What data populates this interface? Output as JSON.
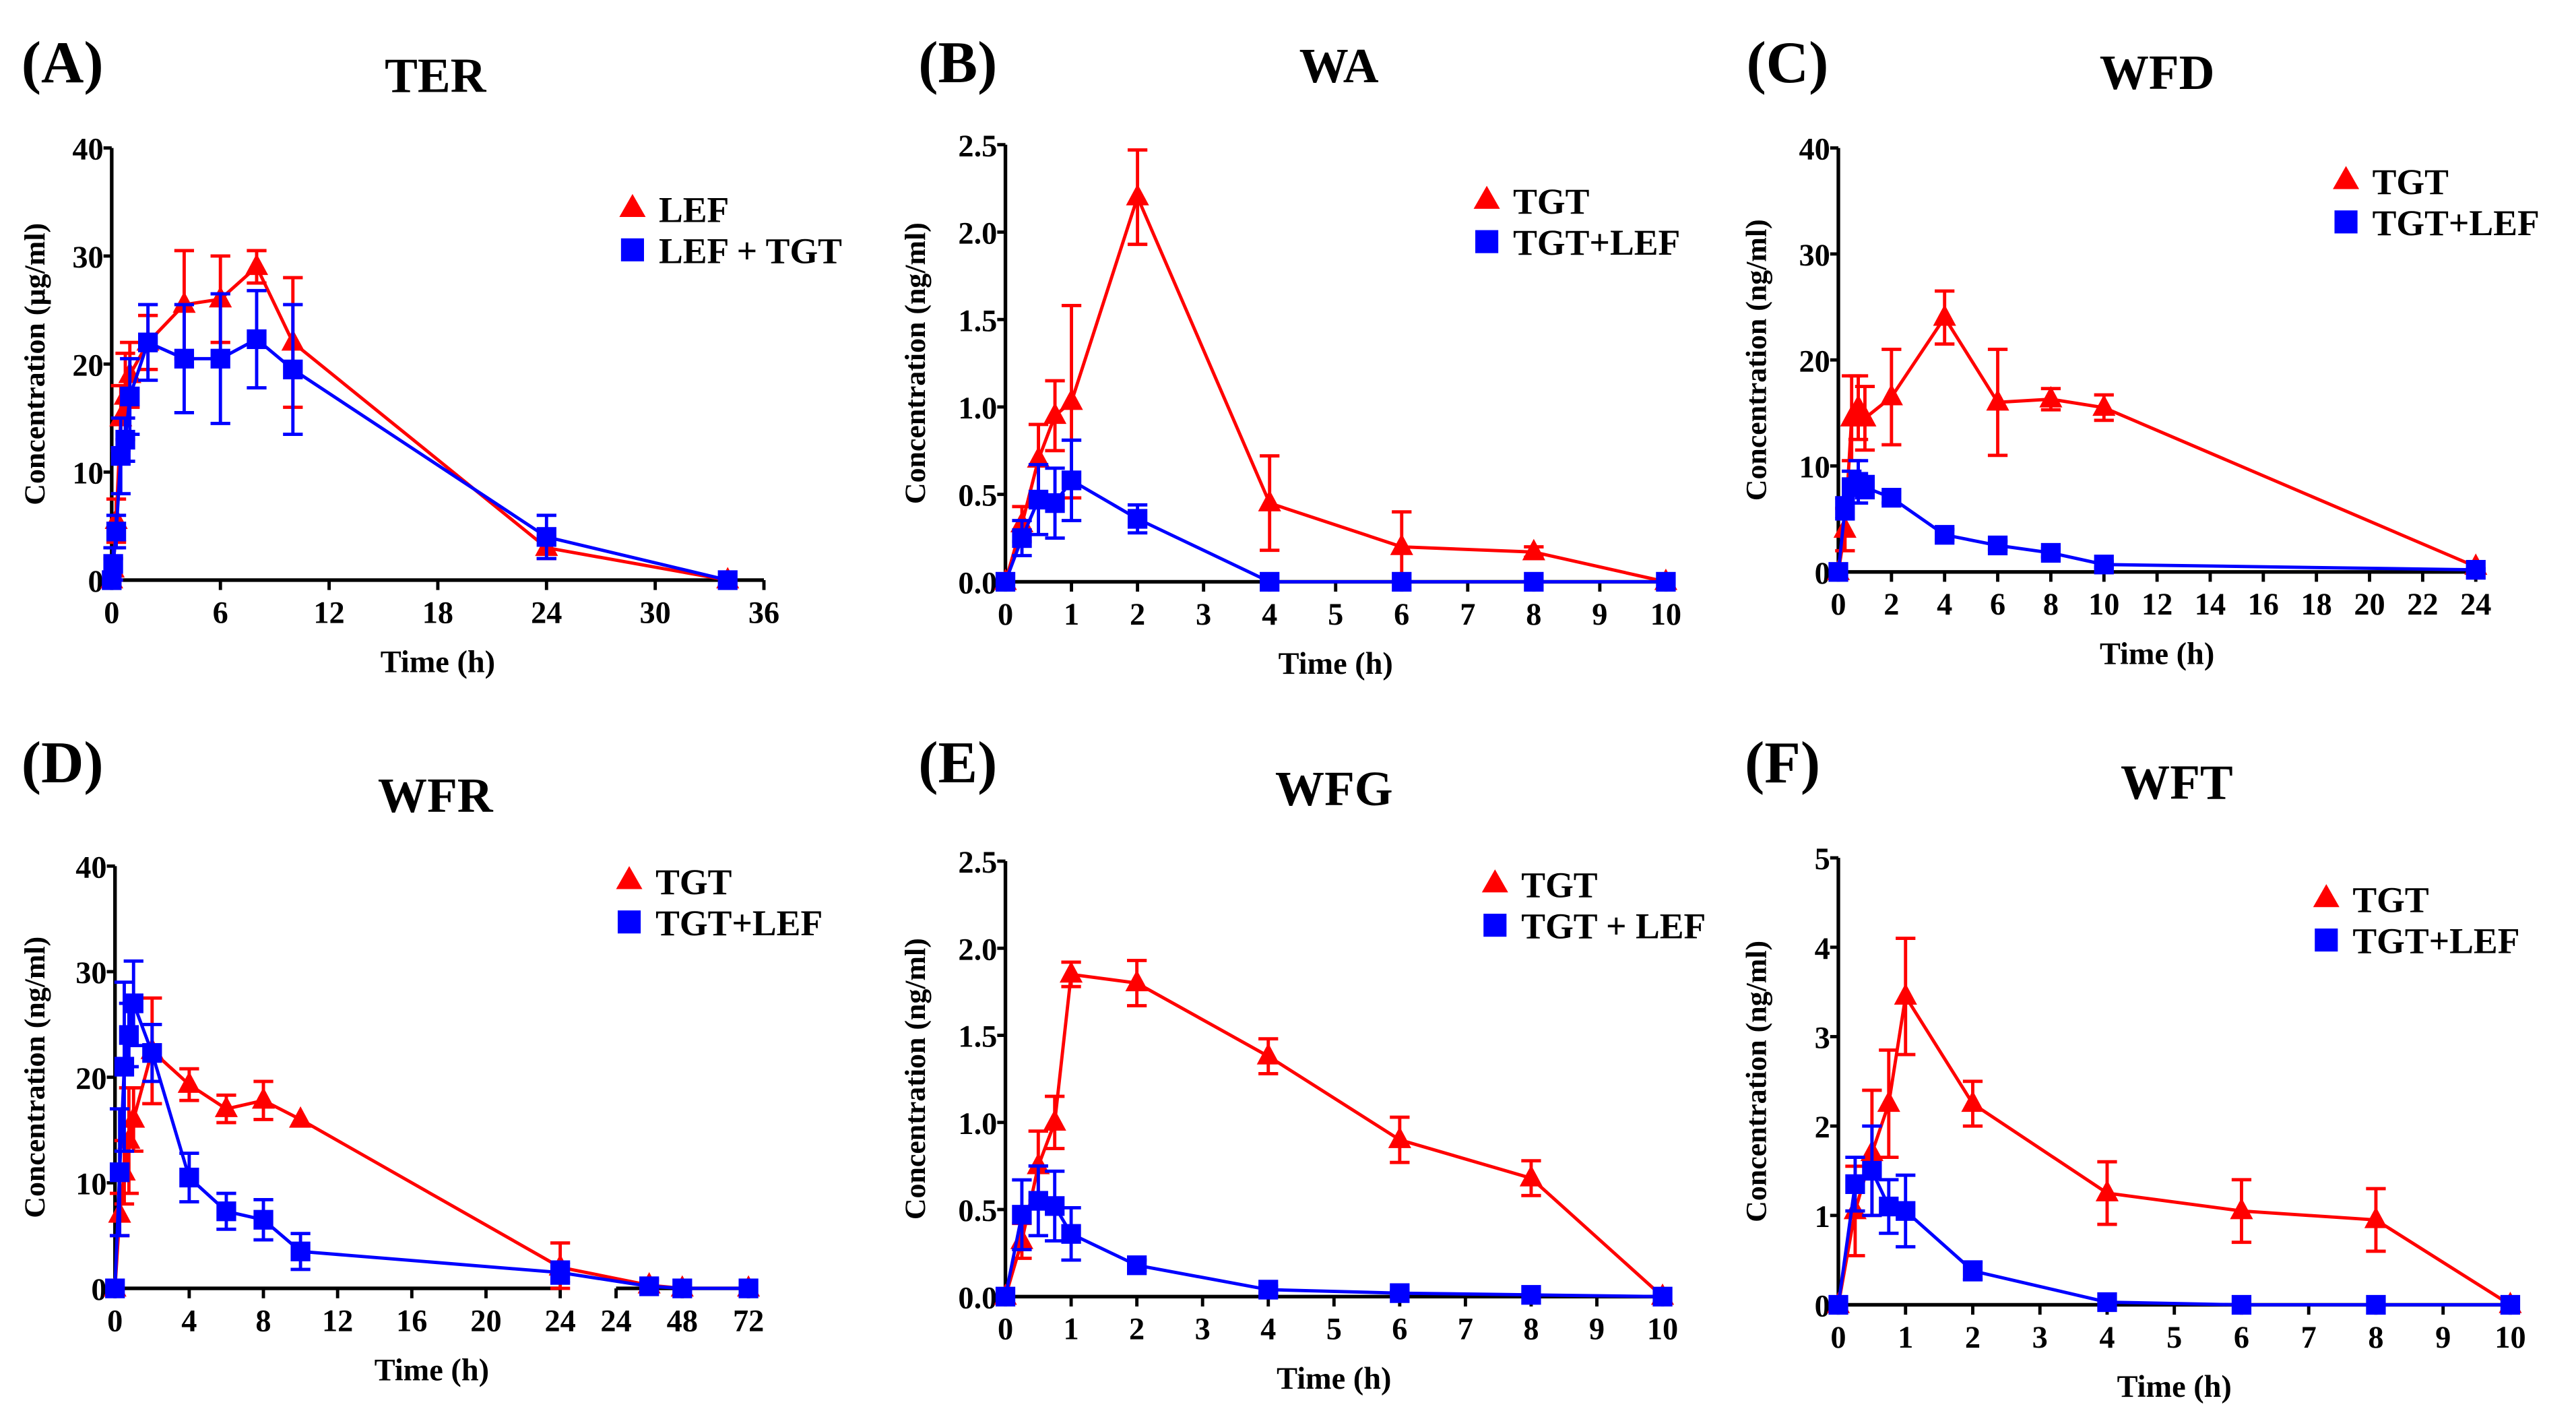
{
  "chart_data": [
    {
      "panel": "(A)",
      "title": "TER",
      "type": "line",
      "xlabel": "Time (h)",
      "ylabel": "Concentration (µg/ml)",
      "xlim": [
        0,
        36
      ],
      "ylim": [
        0,
        40
      ],
      "xticks": [
        "0",
        "6",
        "12",
        "18",
        "24",
        "30",
        "36"
      ],
      "yticks": [
        "0",
        "10",
        "20",
        "30",
        "40"
      ],
      "x": [
        0,
        0.083,
        0.25,
        0.5,
        0.75,
        1,
        2,
        4,
        6,
        8,
        10,
        24,
        34
      ],
      "series": [
        {
          "name": "LEF",
          "color": "#ff0000",
          "marker": "triangle",
          "values": [
            0,
            1,
            5.5,
            15,
            17,
            19,
            22,
            25.5,
            26,
            29,
            22,
            3,
            0
          ],
          "errors": [
            0,
            1,
            2,
            3,
            4,
            3,
            2.5,
            5,
            4,
            1.5,
            6,
            1,
            0
          ]
        },
        {
          "name": "LEF + TGT",
          "color": "#0000ff",
          "marker": "square",
          "values": [
            0,
            1.5,
            4.5,
            11.5,
            13,
            17,
            22,
            20.5,
            20.5,
            22.3,
            19.5,
            4,
            0
          ],
          "errors": [
            0,
            1.5,
            1.5,
            3.5,
            2,
            3.5,
            3.5,
            5,
            6,
            4.5,
            6,
            2,
            0
          ]
        }
      ]
    },
    {
      "panel": "(B)",
      "title": "WA",
      "type": "line",
      "xlabel": "Time (h)",
      "ylabel": "Concentration (ng/ml)",
      "xlim": [
        0,
        10
      ],
      "ylim": [
        0,
        2.5
      ],
      "xticks": [
        "0",
        "1",
        "2",
        "3",
        "4",
        "5",
        "6",
        "7",
        "8",
        "9",
        "10"
      ],
      "yticks": [
        "0.0",
        "0.5",
        "1.0",
        "1.5",
        "2.0",
        "2.5"
      ],
      "x": [
        0,
        0.25,
        0.5,
        0.75,
        1,
        2,
        4,
        6,
        8,
        10
      ],
      "series": [
        {
          "name": "TGT",
          "color": "#ff0000",
          "marker": "triangle",
          "values": [
            0,
            0.33,
            0.7,
            0.95,
            1.03,
            2.2,
            0.45,
            0.2,
            0.17,
            0
          ],
          "errors": [
            0,
            0.1,
            0.2,
            0.2,
            0.55,
            0.27,
            0.27,
            0.2,
            0.03,
            0
          ]
        },
        {
          "name": "TGT+LEF",
          "color": "#0000ff",
          "marker": "square",
          "values": [
            0,
            0.25,
            0.47,
            0.45,
            0.58,
            0.36,
            0,
            0,
            0,
            0
          ],
          "errors": [
            0,
            0.1,
            0.2,
            0.2,
            0.23,
            0.08,
            0,
            0,
            0,
            0
          ]
        }
      ]
    },
    {
      "panel": "(C)",
      "title": "WFD",
      "type": "line",
      "xlabel": "Time (h)",
      "ylabel": "Concentration (ng/ml)",
      "xlim": [
        0,
        24
      ],
      "ylim": [
        0,
        40
      ],
      "xticks": [
        "0",
        "2",
        "4",
        "6",
        "8",
        "10",
        "12",
        "14",
        "16",
        "18",
        "20",
        "22",
        "24"
      ],
      "yticks": [
        "0",
        "10",
        "20",
        "30",
        "40"
      ],
      "x": [
        0,
        0.25,
        0.5,
        0.75,
        1,
        2,
        4,
        6,
        8,
        10,
        24
      ],
      "series": [
        {
          "name": "TGT",
          "color": "#ff0000",
          "marker": "triangle",
          "values": [
            0,
            4,
            14.5,
            15.5,
            14.5,
            16.5,
            24,
            16,
            16.3,
            15.5,
            0.5
          ],
          "errors": [
            0,
            2,
            4,
            3,
            3,
            4.5,
            2.5,
            5,
            1,
            1.2,
            0
          ]
        },
        {
          "name": "TGT+LEF",
          "color": "#0000ff",
          "marker": "square",
          "values": [
            0,
            6,
            8,
            8.5,
            8,
            7,
            3.5,
            2.5,
            1.8,
            0.7,
            0.2
          ],
          "errors": [
            0,
            1,
            1.5,
            2,
            1,
            0.5,
            0.5,
            0.4,
            0.4,
            0.3,
            0.1
          ]
        }
      ]
    },
    {
      "panel": "(D)",
      "title": "WFR",
      "type": "line",
      "xlabel": "Time (h)",
      "ylabel": "Concentration (ng/ml)",
      "xlim": [
        0,
        72
      ],
      "ylim": [
        0,
        40
      ],
      "x_axis_break": 24,
      "xticks": [
        "0",
        "4",
        "8",
        "12",
        "16",
        "20",
        "24",
        "24",
        "48",
        "72"
      ],
      "yticks": [
        "0",
        "10",
        "20",
        "30",
        "40"
      ],
      "x": [
        0,
        0.25,
        0.5,
        0.75,
        1,
        2,
        4,
        6,
        8,
        10,
        24,
        36,
        48,
        72
      ],
      "series": [
        {
          "name": "TGT",
          "color": "#ff0000",
          "marker": "triangle",
          "values": [
            0,
            7,
            11,
            14,
            16,
            22.5,
            19.3,
            17,
            17.8,
            16,
            2,
            0.3,
            0,
            0
          ],
          "errors": [
            0,
            2,
            3,
            5,
            3,
            5,
            1.5,
            1.3,
            1.8,
            0,
            2.3,
            0.5,
            0,
            0
          ]
        },
        {
          "name": "TGT+LEF",
          "color": "#0000ff",
          "marker": "square",
          "values": [
            0,
            11,
            21,
            24,
            27,
            22.3,
            10.5,
            7.3,
            6.5,
            3.5,
            1.5,
            0.2,
            0,
            0
          ],
          "errors": [
            0,
            6,
            8,
            3,
            4,
            2.7,
            2.3,
            1.7,
            1.9,
            1.7,
            1,
            0,
            0,
            0
          ]
        }
      ]
    },
    {
      "panel": "(E)",
      "title": "WFG",
      "type": "line",
      "xlabel": "Time (h)",
      "ylabel": "Concentration (ng/ml)",
      "xlim": [
        0,
        10
      ],
      "ylim": [
        0,
        2.5
      ],
      "xticks": [
        "0",
        "1",
        "2",
        "3",
        "4",
        "5",
        "6",
        "7",
        "8",
        "9",
        "10"
      ],
      "yticks": [
        "0.0",
        "0.5",
        "1.0",
        "1.5",
        "2.0",
        "2.5"
      ],
      "x": [
        0,
        0.25,
        0.5,
        0.75,
        1,
        2,
        4,
        6,
        8,
        10
      ],
      "series": [
        {
          "name": "TGT",
          "color": "#ff0000",
          "marker": "triangle",
          "values": [
            0,
            0.32,
            0.75,
            1.0,
            1.85,
            1.8,
            1.38,
            0.9,
            0.68,
            0
          ],
          "errors": [
            0,
            0.1,
            0.2,
            0.15,
            0.07,
            0.13,
            0.1,
            0.13,
            0.1,
            0
          ]
        },
        {
          "name": "TGT + LEF",
          "color": "#0000ff",
          "marker": "square",
          "values": [
            0,
            0.47,
            0.55,
            0.52,
            0.36,
            0.18,
            0.04,
            0.02,
            0.01,
            0
          ],
          "errors": [
            0,
            0.2,
            0.2,
            0.2,
            0.15,
            0.03,
            0.02,
            0.01,
            0,
            0
          ]
        }
      ]
    },
    {
      "panel": "(F)",
      "title": "WFT",
      "type": "line",
      "xlabel": "Time (h)",
      "ylabel": "Concentration (ng/ml)",
      "xlim": [
        0,
        10
      ],
      "ylim": [
        0,
        5
      ],
      "xticks": [
        "0",
        "1",
        "2",
        "3",
        "4",
        "5",
        "6",
        "7",
        "8",
        "9",
        "10"
      ],
      "yticks": [
        "0",
        "1",
        "2",
        "3",
        "4",
        "5"
      ],
      "x": [
        0,
        0.25,
        0.5,
        0.75,
        1,
        2,
        4,
        6,
        8,
        10
      ],
      "series": [
        {
          "name": "TGT",
          "color": "#ff0000",
          "marker": "triangle",
          "values": [
            0,
            1.05,
            1.7,
            2.25,
            3.45,
            2.25,
            1.25,
            1.05,
            0.95,
            0
          ],
          "errors": [
            0,
            0.5,
            0.7,
            0.6,
            0.65,
            0.25,
            0.35,
            0.35,
            0.35,
            0
          ]
        },
        {
          "name": "TGT+LEF",
          "color": "#0000ff",
          "marker": "square",
          "values": [
            0,
            1.35,
            1.5,
            1.1,
            1.05,
            0.38,
            0.03,
            0,
            0,
            0
          ],
          "errors": [
            0,
            0.3,
            0.5,
            0.3,
            0.4,
            0.1,
            0,
            0,
            0,
            0
          ]
        }
      ]
    }
  ]
}
